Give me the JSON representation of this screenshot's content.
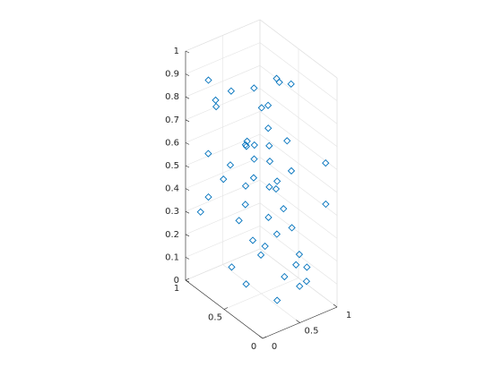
{
  "chart_data": {
    "type": "scatter3d",
    "color": "#0072bd",
    "grid": true,
    "x": [
      0.1,
      0.9,
      0.5,
      0.3,
      0.7,
      0.2,
      0.8,
      0.6,
      0.4,
      0.95,
      0.15,
      0.55,
      0.75,
      0.35,
      0.85,
      0.05,
      0.65,
      0.45,
      0.25,
      0.9,
      0.3,
      0.7,
      0.5,
      0.1,
      0.8,
      0.6,
      0.2,
      0.4,
      0.95,
      0.55,
      0.35,
      0.75,
      0.15,
      0.85,
      0.45,
      0.65,
      0.05,
      0.25,
      0.5,
      0.9,
      0.6,
      0.3,
      0.8,
      0.2,
      0.7,
      0.4,
      0.1,
      0.95,
      0.55,
      0.35
    ],
    "y": [
      0.8,
      0.3,
      0.6,
      0.9,
      0.2,
      0.5,
      0.7,
      0.1,
      0.4,
      0.6,
      0.95,
      0.35,
      0.55,
      0.15,
      0.75,
      0.45,
      0.85,
      0.25,
      0.65,
      0.05,
      0.5,
      0.9,
      0.2,
      0.7,
      0.4,
      0.8,
      0.3,
      0.6,
      0.1,
      0.95,
      0.45,
      0.15,
      0.85,
      0.55,
      0.35,
      0.65,
      0.25,
      0.75,
      0.05,
      0.5,
      0.2,
      0.4,
      0.9,
      0.1,
      0.6,
      0.3,
      0.8,
      0.7,
      0.5,
      0.15
    ],
    "z": [
      0.91,
      0.05,
      0.48,
      0.77,
      0.22,
      0.36,
      0.63,
      0.12,
      0.85,
      0.58,
      0.29,
      0.97,
      0.41,
      0.08,
      0.71,
      0.19,
      0.54,
      0.33,
      0.88,
      0.45,
      0.67,
      0.26,
      0.15,
      0.82,
      0.52,
      0.38,
      0.74,
      0.03,
      0.61,
      0.44,
      0.93,
      0.17,
      0.57,
      0.31,
      0.69,
      0.11,
      0.79,
      0.47,
      0.24,
      0.86,
      0.35,
      0.64,
      0.09,
      0.72,
      0.28,
      0.53,
      0.4,
      0.81,
      0.2,
      0.6
    ],
    "xlim": [
      0,
      1
    ],
    "ylim": [
      0,
      1
    ],
    "zlim": [
      0,
      1
    ],
    "xticks": [
      0,
      0.5,
      1
    ],
    "yticks": [
      0,
      0.5,
      1
    ],
    "zticks": [
      0,
      0.1,
      0.2,
      0.3,
      0.4,
      0.5,
      0.6,
      0.7,
      0.8,
      0.9,
      1
    ]
  }
}
